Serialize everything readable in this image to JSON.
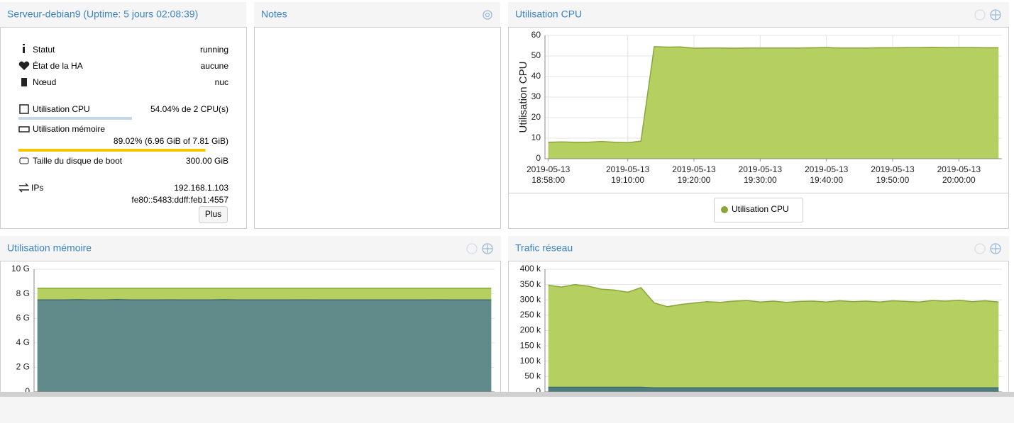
{
  "summary": {
    "title": "Serveur-debian9 (Uptime: 5 jours 02:08:39)",
    "rows": [
      {
        "label": "Statut",
        "value": "running"
      },
      {
        "label": "État de la HA",
        "value": "aucune"
      },
      {
        "label": "Nœud",
        "value": "nuc"
      }
    ],
    "cpu": {
      "label": "Utilisation CPU",
      "text": "54.04% de 2 CPU(s)",
      "percent": 54.04
    },
    "memory": {
      "label": "Utilisation mémoire",
      "text": "89.02% (6.96 GiB of 7.81 GiB)",
      "percent": 89.02
    },
    "disk": {
      "label": "Taille du disque de boot",
      "value": "300.00 GiB"
    },
    "ips": {
      "label": "IPs",
      "values": [
        "192.168.1.103",
        "fe80::5483:ddff:feb1:4557"
      ]
    },
    "button": "Plus"
  },
  "notes": {
    "title": "Notes"
  },
  "chart_data": [
    {
      "type": "area",
      "title": "Utilisation CPU",
      "y_label": "Utilisation CPU",
      "x": [
        "2019-05-13T18:58:00",
        "2019-05-13T19:00:00",
        "2019-05-13T19:02:00",
        "2019-05-13T19:04:00",
        "2019-05-13T19:06:00",
        "2019-05-13T19:08:00",
        "2019-05-13T19:10:00",
        "2019-05-13T19:12:00",
        "2019-05-13T19:14:00",
        "2019-05-13T19:16:00",
        "2019-05-13T19:18:00",
        "2019-05-13T19:20:00",
        "2019-05-13T19:22:00",
        "2019-05-13T19:24:00",
        "2019-05-13T19:26:00",
        "2019-05-13T19:28:00",
        "2019-05-13T19:30:00",
        "2019-05-13T19:32:00",
        "2019-05-13T19:34:00",
        "2019-05-13T19:36:00",
        "2019-05-13T19:38:00",
        "2019-05-13T19:40:00",
        "2019-05-13T19:42:00",
        "2019-05-13T19:44:00",
        "2019-05-13T19:46:00",
        "2019-05-13T19:48:00",
        "2019-05-13T19:50:00",
        "2019-05-13T19:52:00",
        "2019-05-13T19:54:00",
        "2019-05-13T19:56:00",
        "2019-05-13T19:58:00",
        "2019-05-13T20:00:00",
        "2019-05-13T20:02:00",
        "2019-05-13T20:04:00",
        "2019-05-13T20:06:00"
      ],
      "xlim": [
        "2019-05-13T18:57:30",
        "2019-05-13T20:06:30"
      ],
      "xticks": [
        {
          "value": "2019-05-13T18:58:00",
          "label": [
            "2019-05-13",
            "18:58:00"
          ]
        },
        {
          "value": "2019-05-13T19:10:00",
          "label": [
            "2019-05-13",
            "19:10:00"
          ]
        },
        {
          "value": "2019-05-13T19:20:00",
          "label": [
            "2019-05-13",
            "19:20:00"
          ]
        },
        {
          "value": "2019-05-13T19:30:00",
          "label": [
            "2019-05-13",
            "19:30:00"
          ]
        },
        {
          "value": "2019-05-13T19:40:00",
          "label": [
            "2019-05-13",
            "19:40:00"
          ]
        },
        {
          "value": "2019-05-13T19:50:00",
          "label": [
            "2019-05-13",
            "19:50:00"
          ]
        },
        {
          "value": "2019-05-13T20:00:00",
          "label": [
            "2019-05-13",
            "20:00:00"
          ]
        }
      ],
      "ylim": [
        0,
        60
      ],
      "yticks": [
        0,
        10,
        20,
        30,
        40,
        50,
        60
      ],
      "grid": true,
      "series": [
        {
          "name": "Utilisation CPU",
          "color": "#b5cf61",
          "line_color": "#8aa53a",
          "values": [
            8.0,
            8.2,
            8.0,
            8.0,
            8.4,
            8.0,
            7.8,
            8.6,
            54.5,
            54.3,
            54.4,
            53.8,
            53.9,
            53.9,
            53.8,
            53.9,
            53.9,
            53.9,
            53.9,
            53.9,
            54.0,
            54.1,
            53.9,
            53.9,
            53.9,
            54.0,
            54.0,
            54.1,
            54.1,
            54.2,
            54.1,
            54.1,
            54.1,
            54.0,
            54.0
          ]
        }
      ]
    },
    {
      "type": "area",
      "title": "Utilisation mémoire",
      "x": [
        "2019-05-13T18:58:00",
        "2019-05-13T19:00:00",
        "2019-05-13T19:02:00",
        "2019-05-13T19:04:00",
        "2019-05-13T19:06:00",
        "2019-05-13T19:08:00",
        "2019-05-13T19:10:00",
        "2019-05-13T19:12:00",
        "2019-05-13T19:14:00",
        "2019-05-13T19:16:00",
        "2019-05-13T19:18:00",
        "2019-05-13T19:20:00",
        "2019-05-13T19:22:00",
        "2019-05-13T19:24:00",
        "2019-05-13T19:26:00",
        "2019-05-13T19:28:00",
        "2019-05-13T19:30:00",
        "2019-05-13T19:32:00",
        "2019-05-13T19:34:00",
        "2019-05-13T19:36:00",
        "2019-05-13T19:38:00",
        "2019-05-13T19:40:00",
        "2019-05-13T19:42:00",
        "2019-05-13T19:44:00",
        "2019-05-13T19:46:00",
        "2019-05-13T19:48:00",
        "2019-05-13T19:50:00",
        "2019-05-13T19:52:00",
        "2019-05-13T19:54:00",
        "2019-05-13T19:56:00",
        "2019-05-13T19:58:00",
        "2019-05-13T20:00:00",
        "2019-05-13T20:02:00",
        "2019-05-13T20:04:00",
        "2019-05-13T20:06:00"
      ],
      "xlim": [
        "2019-05-13T18:57:30",
        "2019-05-13T20:06:30"
      ],
      "ylim": [
        0,
        10
      ],
      "yticks": [
        {
          "value": 0,
          "label": "0"
        },
        {
          "value": 2,
          "label": "2 G"
        },
        {
          "value": 4,
          "label": "4 G"
        },
        {
          "value": 6,
          "label": "6 G"
        },
        {
          "value": 8,
          "label": "8 G"
        },
        {
          "value": 10,
          "label": "10 G"
        }
      ],
      "grid": true,
      "series": [
        {
          "color": "#b5cf61",
          "line_color": "#8aa53a",
          "values": [
            8.45,
            8.45,
            8.45,
            8.45,
            8.45,
            8.45,
            8.45,
            8.45,
            8.45,
            8.45,
            8.45,
            8.45,
            8.45,
            8.45,
            8.45,
            8.45,
            8.45,
            8.45,
            8.45,
            8.45,
            8.45,
            8.45,
            8.45,
            8.45,
            8.45,
            8.45,
            8.45,
            8.45,
            8.45,
            8.45,
            8.45,
            8.45,
            8.45,
            8.45,
            8.45
          ]
        },
        {
          "color": "#618b8a",
          "line_color": "#3f6a6a",
          "values": [
            7.5,
            7.5,
            7.5,
            7.52,
            7.5,
            7.5,
            7.53,
            7.5,
            7.5,
            7.5,
            7.51,
            7.5,
            7.5,
            7.5,
            7.52,
            7.5,
            7.5,
            7.5,
            7.5,
            7.5,
            7.51,
            7.5,
            7.5,
            7.5,
            7.5,
            7.5,
            7.5,
            7.5,
            7.5,
            7.5,
            7.51,
            7.5,
            7.5,
            7.5,
            7.5
          ]
        }
      ]
    },
    {
      "type": "area",
      "title": "Trafic réseau",
      "x": [
        "2019-05-13T18:58:00",
        "2019-05-13T19:00:00",
        "2019-05-13T19:02:00",
        "2019-05-13T19:04:00",
        "2019-05-13T19:06:00",
        "2019-05-13T19:08:00",
        "2019-05-13T19:10:00",
        "2019-05-13T19:12:00",
        "2019-05-13T19:14:00",
        "2019-05-13T19:16:00",
        "2019-05-13T19:18:00",
        "2019-05-13T19:20:00",
        "2019-05-13T19:22:00",
        "2019-05-13T19:24:00",
        "2019-05-13T19:26:00",
        "2019-05-13T19:28:00",
        "2019-05-13T19:30:00",
        "2019-05-13T19:32:00",
        "2019-05-13T19:34:00",
        "2019-05-13T19:36:00",
        "2019-05-13T19:38:00",
        "2019-05-13T19:40:00",
        "2019-05-13T19:42:00",
        "2019-05-13T19:44:00",
        "2019-05-13T19:46:00",
        "2019-05-13T19:48:00",
        "2019-05-13T19:50:00",
        "2019-05-13T19:52:00",
        "2019-05-13T19:54:00",
        "2019-05-13T19:56:00",
        "2019-05-13T19:58:00",
        "2019-05-13T20:00:00",
        "2019-05-13T20:02:00",
        "2019-05-13T20:04:00",
        "2019-05-13T20:06:00"
      ],
      "xlim": [
        "2019-05-13T18:57:30",
        "2019-05-13T20:06:30"
      ],
      "ylim": [
        0,
        400000
      ],
      "yticks": [
        {
          "value": 0,
          "label": "0"
        },
        {
          "value": 50000,
          "label": "50 k"
        },
        {
          "value": 100000,
          "label": "100 k"
        },
        {
          "value": 150000,
          "label": "150 k"
        },
        {
          "value": 200000,
          "label": "200 k"
        },
        {
          "value": 250000,
          "label": "250 k"
        },
        {
          "value": 300000,
          "label": "300 k"
        },
        {
          "value": 350000,
          "label": "350 k"
        },
        {
          "value": 400000,
          "label": "400 k"
        }
      ],
      "grid": true,
      "series": [
        {
          "color": "#b5cf61",
          "line_color": "#8aa53a",
          "values": [
            348000,
            342000,
            350000,
            345000,
            335000,
            332000,
            325000,
            340000,
            290000,
            278000,
            285000,
            290000,
            294000,
            292000,
            296000,
            298000,
            293000,
            296000,
            292000,
            295000,
            296000,
            293000,
            297000,
            294000,
            296000,
            293000,
            297000,
            295000,
            293000,
            298000,
            296000,
            299000,
            294000,
            297000,
            293000
          ]
        },
        {
          "color": "#4e7d7f",
          "line_color": "#3f6a6a",
          "values": [
            15000,
            15000,
            15000,
            15000,
            15000,
            15000,
            15000,
            15000,
            13000,
            13000,
            13000,
            13000,
            13000,
            13000,
            13000,
            13000,
            13000,
            13000,
            13000,
            13000,
            13000,
            13000,
            13000,
            13000,
            13000,
            13000,
            13000,
            13000,
            13000,
            13000,
            13000,
            13000,
            13000,
            13000,
            13000
          ]
        }
      ]
    }
  ]
}
